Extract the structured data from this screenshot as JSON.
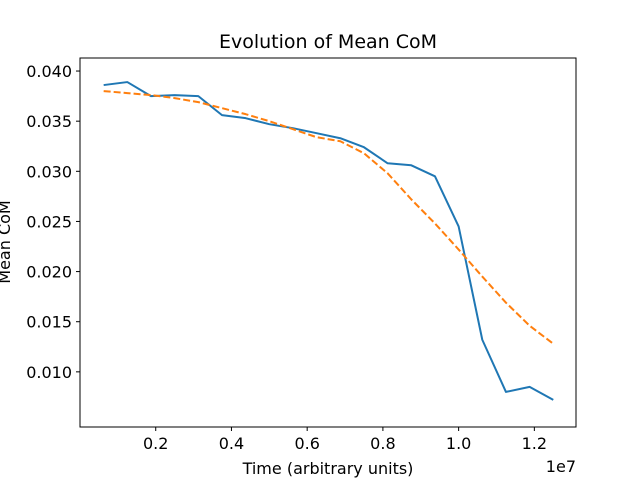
{
  "chart_data": {
    "type": "line",
    "title": "Evolution of Mean CoM",
    "xlabel": "Time (arbitrary units)",
    "ylabel": "Mean CoM",
    "x_offset_label": "1e7",
    "xlim": [
      0.0,
      1.31
    ],
    "ylim": [
      0.0045,
      0.0413
    ],
    "x_ticks": [
      0.2,
      0.4,
      0.6,
      0.8,
      1.0,
      1.2
    ],
    "x_tick_labels": [
      "0.2",
      "0.4",
      "0.6",
      "0.8",
      "1.0",
      "1.2"
    ],
    "y_ticks": [
      0.01,
      0.015,
      0.02,
      0.025,
      0.03,
      0.035,
      0.04
    ],
    "y_tick_labels": [
      "0.010",
      "0.015",
      "0.020",
      "0.025",
      "0.030",
      "0.035",
      "0.040"
    ],
    "grid": false,
    "legend": "none",
    "series": [
      {
        "style": "solid",
        "color": "#1f77b4",
        "x": [
          0.0625,
          0.125,
          0.1875,
          0.25,
          0.3125,
          0.375,
          0.4375,
          0.5,
          0.5625,
          0.625,
          0.6875,
          0.75,
          0.8125,
          0.875,
          0.9375,
          1.0,
          1.0625,
          1.125,
          1.1875,
          1.25
        ],
        "y": [
          0.0386,
          0.0389,
          0.0375,
          0.0376,
          0.0375,
          0.0356,
          0.0353,
          0.0347,
          0.0343,
          0.0338,
          0.0333,
          0.0324,
          0.0308,
          0.0306,
          0.0295,
          0.0245,
          0.0132,
          0.008,
          0.0085,
          0.0072
        ]
      },
      {
        "style": "dashed",
        "color": "#ff7f0e",
        "x": [
          0.0625,
          0.125,
          0.1875,
          0.25,
          0.3125,
          0.375,
          0.4375,
          0.5,
          0.5625,
          0.625,
          0.6875,
          0.75,
          0.8125,
          0.875,
          0.9375,
          1.0,
          1.0625,
          1.125,
          1.1875,
          1.25
        ],
        "y": [
          0.038,
          0.0378,
          0.0376,
          0.0373,
          0.0369,
          0.0363,
          0.0357,
          0.035,
          0.0342,
          0.0334,
          0.033,
          0.0318,
          0.0298,
          0.0272,
          0.0248,
          0.0222,
          0.0195,
          0.0169,
          0.0146,
          0.0128
        ]
      }
    ]
  }
}
